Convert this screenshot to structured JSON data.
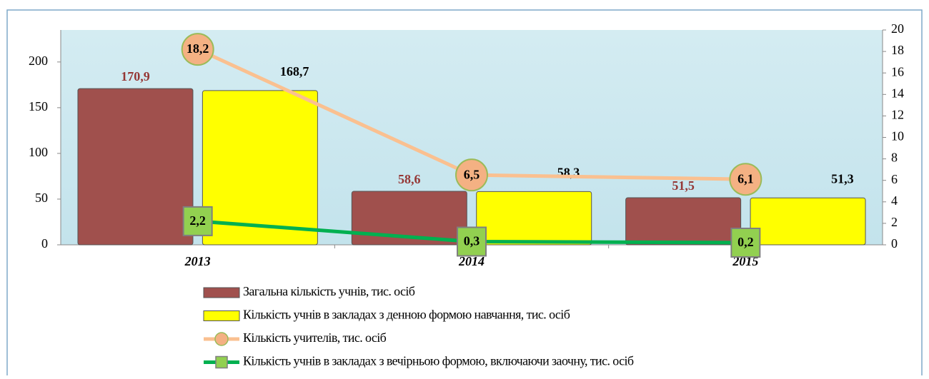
{
  "chart_data": {
    "type": "bar",
    "categories": [
      "2013",
      "2014",
      "2015"
    ],
    "series": [
      {
        "name": "Загальна кількість учнів, тис. осіб",
        "type": "bar",
        "color": "#a0504d",
        "label_color": "#953735",
        "values": [
          170.9,
          58.6,
          51.5
        ],
        "value_labels": [
          "170,9",
          "58,6",
          "51,5"
        ]
      },
      {
        "name": "Кількість учнів в закладах з денною формою навчання, тис. осіб",
        "type": "bar",
        "color": "#ffff00",
        "label_color": "#000000",
        "values": [
          168.7,
          58.3,
          51.3
        ],
        "value_labels": [
          "168,7",
          "58,3",
          "51,3"
        ]
      },
      {
        "name": "Кількість учителів, тис. осіб",
        "type": "line",
        "axis": "y2",
        "marker": "circle",
        "color": "#fac090",
        "marker_color": "#f4b183",
        "values": [
          18.2,
          6.5,
          6.1
        ],
        "value_labels": [
          "18,2",
          "6,5",
          "6,1"
        ]
      },
      {
        "name": "Кількість учнів в закладах з вечірньою формою, включаючи заочну, тис. осіб",
        "type": "line",
        "axis": "y2",
        "marker": "square",
        "color": "#00b050",
        "marker_color": "#92d050",
        "values": [
          2.2,
          0.3,
          0.2
        ],
        "value_labels": [
          "2,2",
          "0,3",
          "0,2"
        ]
      }
    ],
    "ylim": [
      0,
      235
    ],
    "yticks": [
      0,
      50,
      100,
      150,
      200
    ],
    "y2lim": [
      0,
      20
    ],
    "y2ticks": [
      0,
      2,
      4,
      6,
      8,
      10,
      12,
      14,
      16,
      18,
      20
    ],
    "legend": "bottom"
  }
}
